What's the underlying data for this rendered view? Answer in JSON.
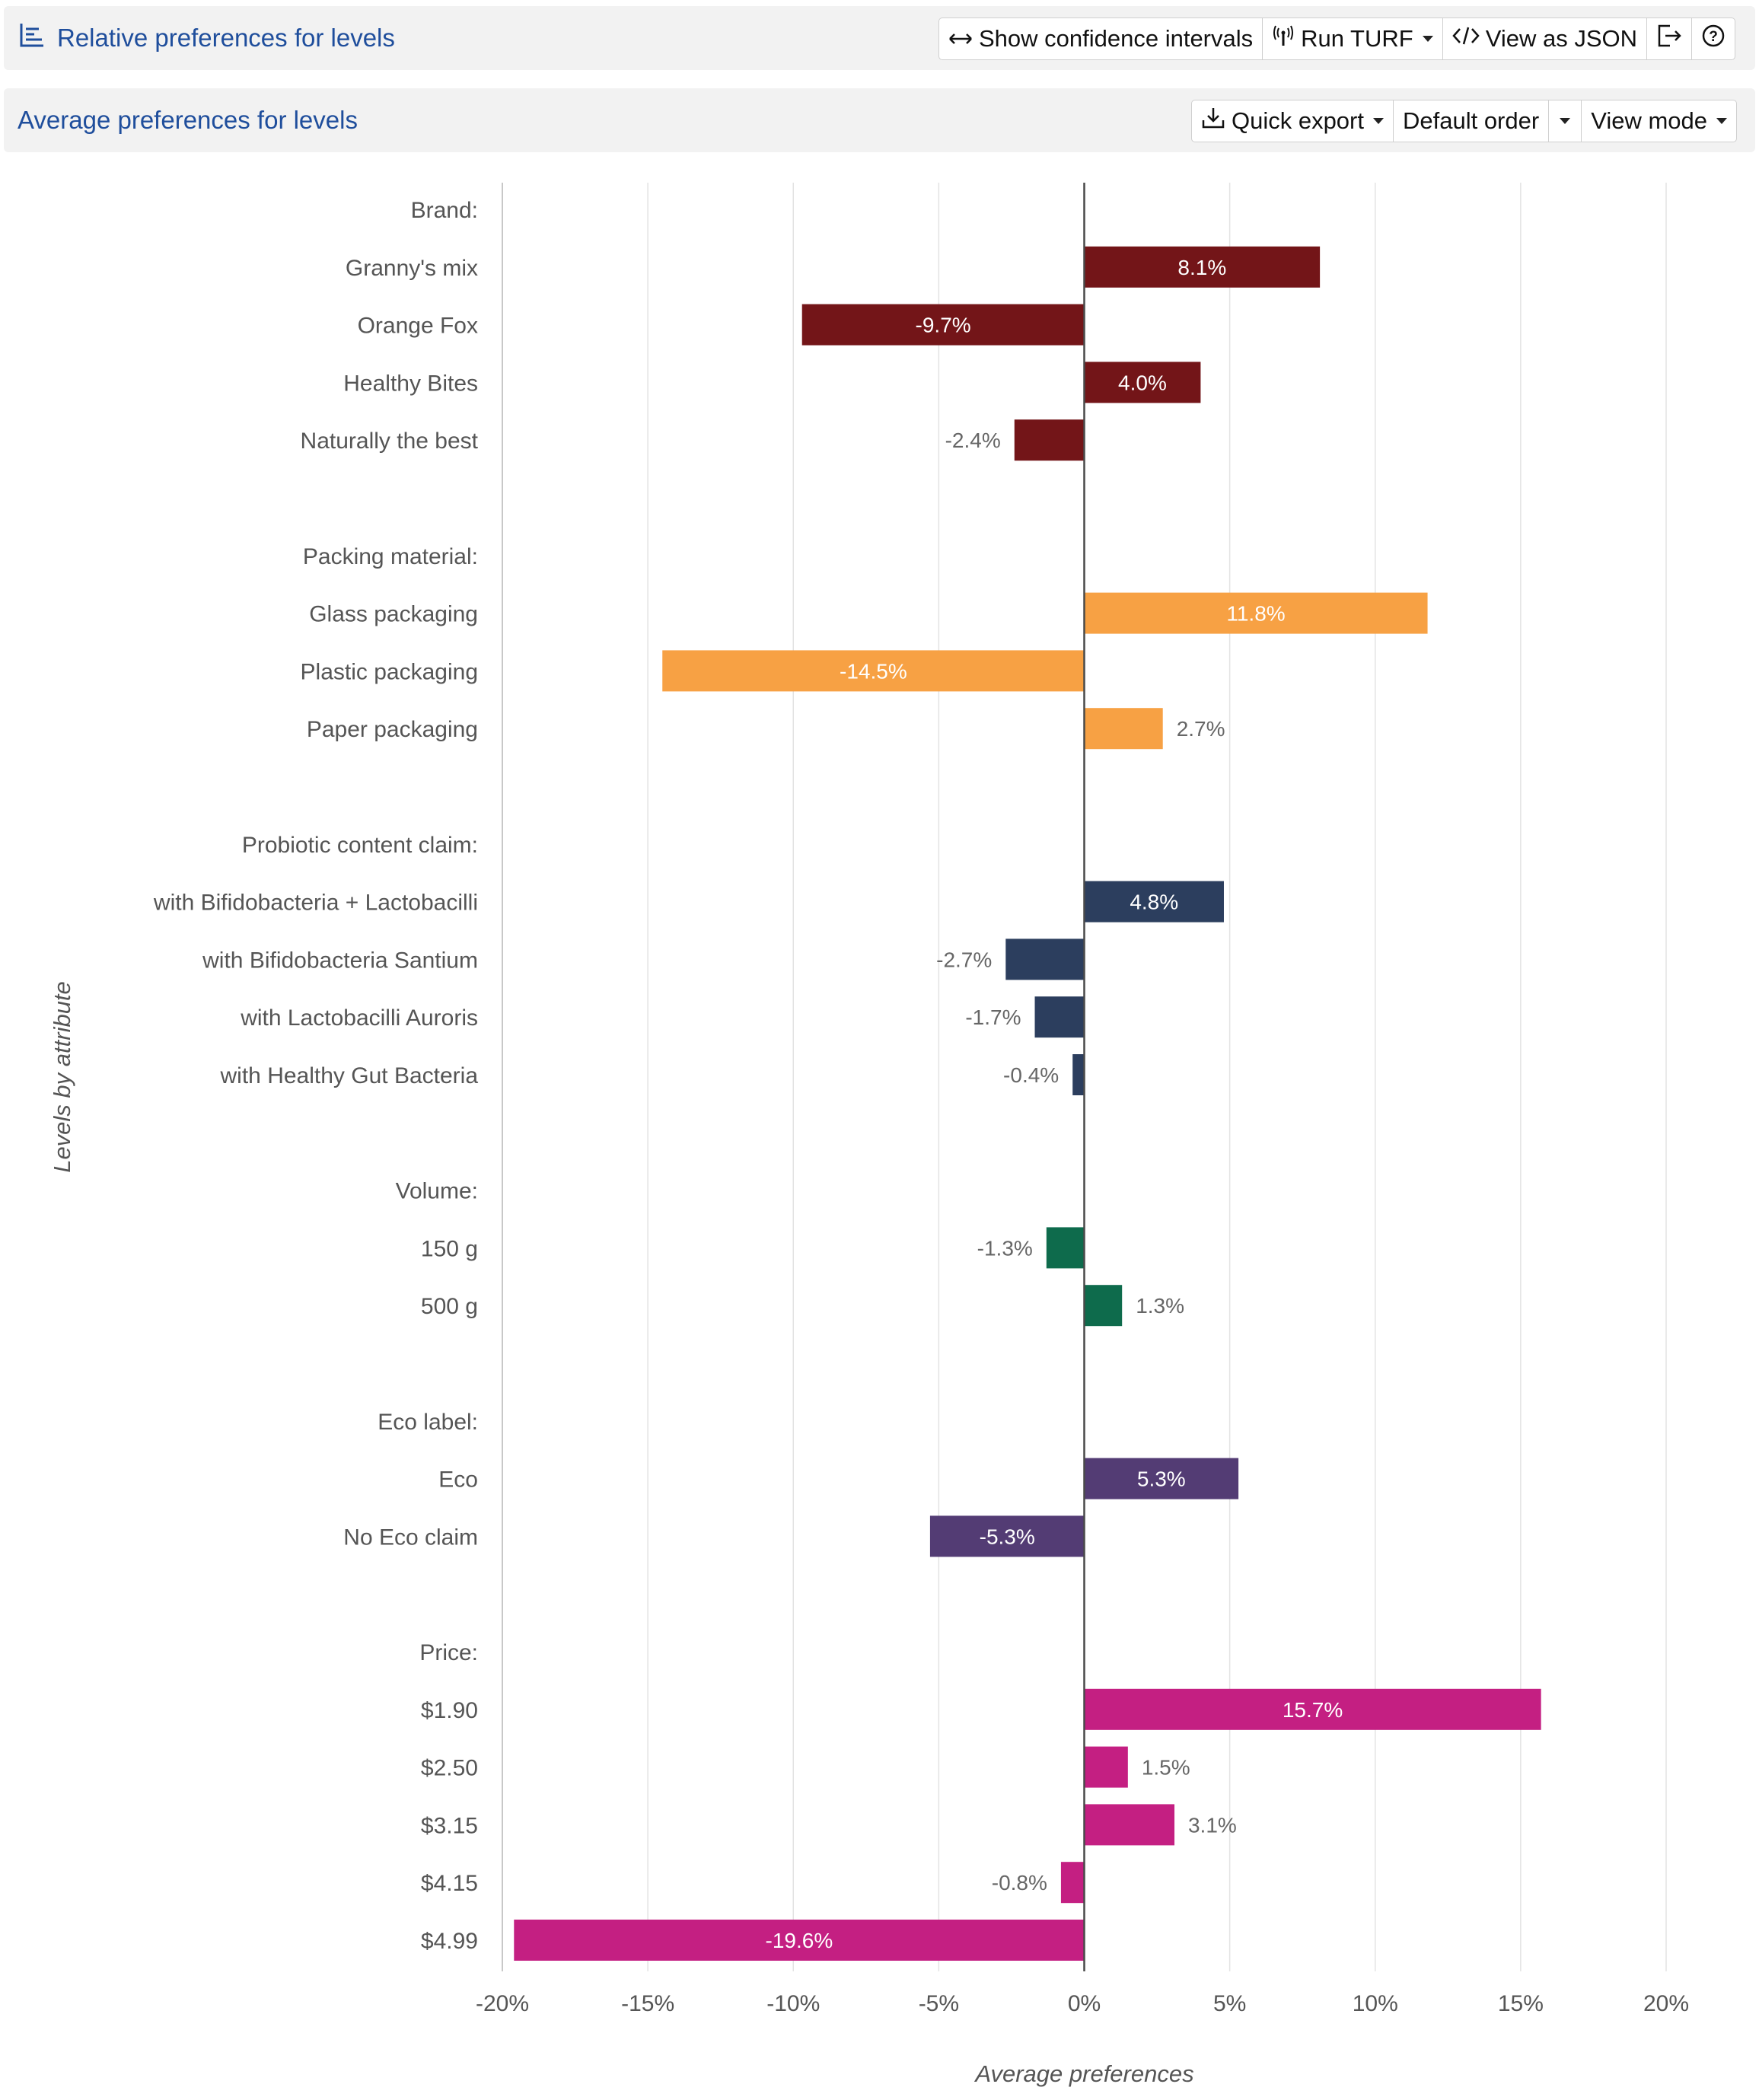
{
  "header": {
    "title": "Relative preferences for levels",
    "buttons": {
      "confidence": "Show confidence intervals",
      "turf": "Run TURF",
      "json": "View as JSON"
    }
  },
  "subheader": {
    "title": "Average preferences for levels",
    "buttons": {
      "export": "Quick export",
      "order": "Default order",
      "view_mode": "View mode"
    }
  },
  "colors": {
    "brand": "#731518",
    "packing": "#f7a144",
    "probiotic": "#2c3e5e",
    "volume": "#0e6b4c",
    "eco": "#533c74",
    "price": "#c41f82",
    "accent": "#1f4e9c"
  },
  "chart_data": {
    "type": "bar",
    "orientation": "horizontal",
    "xlabel": "Average preferences",
    "ylabel": "Levels by attribute",
    "xlim": [
      -20,
      20
    ],
    "xticks": [
      "-20%",
      "-15%",
      "-10%",
      "-5%",
      "0%",
      "5%",
      "10%",
      "15%",
      "20%"
    ],
    "grid": true,
    "groups": [
      {
        "attribute": "Brand:",
        "color_key": "brand",
        "levels": [
          {
            "label": "Granny's mix",
            "value": 8.1,
            "display": "8.1%"
          },
          {
            "label": "Orange Fox",
            "value": -9.7,
            "display": "-9.7%"
          },
          {
            "label": "Healthy Bites",
            "value": 4.0,
            "display": "4.0%"
          },
          {
            "label": "Naturally the best",
            "value": -2.4,
            "display": "-2.4%"
          }
        ]
      },
      {
        "attribute": "Packing material:",
        "color_key": "packing",
        "levels": [
          {
            "label": "Glass packaging",
            "value": 11.8,
            "display": "11.8%"
          },
          {
            "label": "Plastic packaging",
            "value": -14.5,
            "display": "-14.5%"
          },
          {
            "label": "Paper packaging",
            "value": 2.7,
            "display": "2.7%"
          }
        ]
      },
      {
        "attribute": "Probiotic content claim:",
        "color_key": "probiotic",
        "levels": [
          {
            "label": "with Bifidobacteria + Lactobacilli",
            "value": 4.8,
            "display": "4.8%"
          },
          {
            "label": "with Bifidobacteria Santium",
            "value": -2.7,
            "display": "-2.7%"
          },
          {
            "label": "with Lactobacilli Auroris",
            "value": -1.7,
            "display": "-1.7%"
          },
          {
            "label": "with Healthy Gut Bacteria",
            "value": -0.4,
            "display": "-0.4%"
          }
        ]
      },
      {
        "attribute": "Volume:",
        "color_key": "volume",
        "levels": [
          {
            "label": "150 g",
            "value": -1.3,
            "display": "-1.3%"
          },
          {
            "label": "500 g",
            "value": 1.3,
            "display": "1.3%"
          }
        ]
      },
      {
        "attribute": "Eco label:",
        "color_key": "eco",
        "levels": [
          {
            "label": "Eco",
            "value": 5.3,
            "display": "5.3%"
          },
          {
            "label": "No Eco claim",
            "value": -5.3,
            "display": "-5.3%"
          }
        ]
      },
      {
        "attribute": "Price:",
        "color_key": "price",
        "levels": [
          {
            "label": "$1.90",
            "value": 15.7,
            "display": "15.7%"
          },
          {
            "label": "$2.50",
            "value": 1.5,
            "display": "1.5%"
          },
          {
            "label": "$3.15",
            "value": 3.1,
            "display": "3.1%"
          },
          {
            "label": "$4.15",
            "value": -0.8,
            "display": "-0.8%"
          },
          {
            "label": "$4.99",
            "value": -19.6,
            "display": "-19.6%"
          }
        ]
      }
    ]
  }
}
